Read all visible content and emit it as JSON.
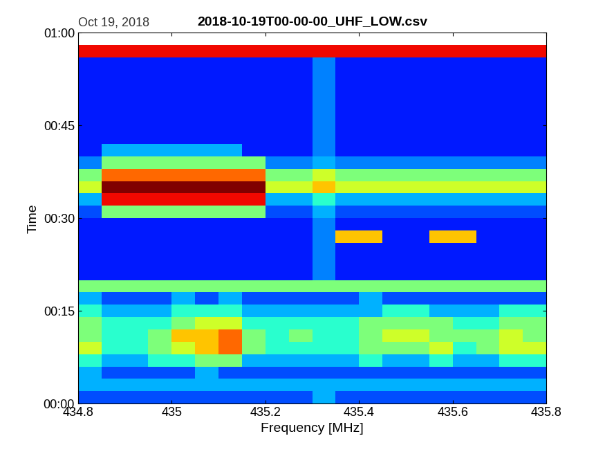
{
  "chart_data": {
    "type": "heatmap",
    "title": "2018-10-19T00-00-00_UHF_LOW.csv",
    "subtitle": "Oct 19, 2018",
    "x_label": "Frequency [MHz]",
    "y_label": "Time",
    "color": "jet",
    "xlim": [
      434.8,
      435.8
    ],
    "ylim": [
      0,
      60
    ],
    "xticks": [
      434.8,
      435,
      435.2,
      435.4,
      435.6,
      435.8
    ],
    "yticks": [
      {
        "value": 0,
        "label": "00:00"
      },
      {
        "value": 15,
        "label": "00:15"
      },
      {
        "value": 30,
        "label": "00:30"
      },
      {
        "value": 45,
        "label": "00:45"
      },
      {
        "value": 60,
        "label": "01:00"
      }
    ],
    "color_range": [
      0,
      10
    ],
    "x_edges": [
      434.8,
      434.85,
      434.9,
      434.95,
      435.0,
      435.05,
      435.1,
      435.15,
      435.2,
      435.25,
      435.3,
      435.35,
      435.4,
      435.45,
      435.5,
      435.55,
      435.6,
      435.65,
      435.7,
      435.75,
      435.8
    ],
    "y_edges": [
      0,
      2,
      4,
      6,
      8,
      10,
      12,
      14,
      16,
      18,
      20,
      22,
      24,
      26,
      28,
      30,
      32,
      34,
      36,
      38,
      40,
      42,
      44,
      46,
      48,
      50,
      52,
      54,
      56,
      58
    ],
    "cells": [
      [
        2,
        2,
        2,
        2,
        2,
        2,
        2,
        2,
        2,
        2,
        3,
        2,
        2,
        2,
        2,
        2,
        2,
        2,
        2,
        2
      ],
      [
        3,
        3,
        3,
        3,
        3,
        3,
        3,
        3,
        3,
        3,
        3,
        3,
        3,
        3,
        3,
        3,
        3,
        3,
        3,
        3
      ],
      [
        3,
        2,
        2,
        2,
        2,
        3,
        2,
        2,
        2,
        2,
        2,
        2,
        2,
        2,
        2,
        2,
        2,
        2,
        2,
        2
      ],
      [
        4,
        3,
        3,
        4,
        4,
        5,
        5,
        3,
        3,
        3,
        3,
        3,
        4,
        3,
        3,
        4,
        3,
        3,
        4,
        4
      ],
      [
        6,
        4,
        4,
        5,
        6,
        7,
        8,
        5,
        4,
        4,
        4,
        4,
        5,
        5,
        5,
        6,
        4,
        5,
        6,
        6
      ],
      [
        5,
        4,
        4,
        5,
        7,
        7,
        8,
        5,
        4,
        5,
        4,
        4,
        5,
        6,
        6,
        5,
        5,
        5,
        6,
        5
      ],
      [
        5,
        4,
        4,
        4,
        5,
        6,
        6,
        4,
        4,
        4,
        4,
        4,
        5,
        5,
        5,
        5,
        4,
        4,
        5,
        5
      ],
      [
        4,
        3,
        3,
        3,
        4,
        4,
        4,
        3,
        3,
        3,
        3,
        3,
        3,
        4,
        4,
        3,
        3,
        3,
        4,
        4
      ],
      [
        3,
        2,
        2,
        2,
        3,
        2,
        3,
        2,
        2,
        2,
        2,
        2,
        3,
        2,
        2,
        2,
        2,
        2,
        2,
        2
      ],
      [
        5,
        5,
        5,
        5,
        5,
        5,
        5,
        5,
        5,
        5,
        5,
        5,
        5,
        5,
        5,
        5,
        5,
        5,
        5,
        5
      ],
      [
        1.5,
        1.5,
        1.5,
        1.5,
        1.5,
        1.5,
        1.5,
        1.5,
        1.5,
        1.5,
        2.5,
        1.5,
        1.5,
        1.5,
        1.5,
        1.5,
        1.5,
        1.5,
        1.5,
        1.5
      ],
      [
        1.5,
        1.5,
        1.5,
        1.5,
        1.5,
        1.5,
        1.5,
        1.5,
        1.5,
        1.5,
        2.5,
        1.5,
        1.5,
        1.5,
        1.5,
        1.5,
        1.5,
        1.5,
        1.5,
        1.5
      ],
      [
        1.5,
        1.5,
        1.5,
        1.5,
        1.5,
        1.5,
        1.5,
        1.5,
        1.5,
        1.5,
        2.5,
        1.5,
        1.5,
        1.5,
        1.5,
        1.5,
        1.5,
        1.5,
        1.5,
        1.5
      ],
      [
        1.5,
        1.5,
        1.5,
        1.5,
        1.5,
        1.5,
        1.5,
        1.5,
        1.5,
        1.5,
        2.5,
        7,
        7,
        1.5,
        1.5,
        7,
        7,
        1.5,
        1.5,
        1.5
      ],
      [
        1.5,
        1.5,
        1.5,
        1.5,
        1.5,
        1.5,
        1.5,
        1.5,
        1.5,
        1.5,
        2.5,
        1.5,
        1.5,
        1.5,
        1.5,
        1.5,
        1.5,
        1.5,
        1.5,
        1.5
      ],
      [
        2,
        5,
        5,
        5,
        5,
        5,
        5,
        5,
        2,
        2,
        3,
        2,
        2,
        2,
        2,
        2,
        2,
        2,
        2,
        2
      ],
      [
        3,
        9,
        9,
        9,
        9,
        9,
        9,
        9,
        3,
        3,
        4,
        3,
        3,
        3,
        3,
        3,
        3,
        3,
        3,
        3
      ],
      [
        6,
        10,
        10,
        10,
        10,
        10,
        10,
        10,
        6,
        6,
        7,
        6,
        6,
        6,
        6,
        6,
        6,
        6,
        6,
        6
      ],
      [
        5,
        8,
        8,
        8,
        8,
        8,
        8,
        8,
        5,
        5,
        6,
        5,
        5,
        5,
        5,
        5,
        5,
        5,
        5,
        5
      ],
      [
        2.5,
        5,
        5,
        5,
        5,
        5,
        5,
        5,
        2.5,
        2.5,
        3,
        2.5,
        2.5,
        2.5,
        2.5,
        2.5,
        2.5,
        2.5,
        2.5,
        2.5
      ],
      [
        1.5,
        3,
        3,
        3,
        3,
        3,
        3,
        1.5,
        1.5,
        1.5,
        2.5,
        1.5,
        1.5,
        1.5,
        1.5,
        1.5,
        1.5,
        1.5,
        1.5,
        1.5
      ],
      [
        1.5,
        1.5,
        1.5,
        1.5,
        1.5,
        1.5,
        1.5,
        1.5,
        1.5,
        1.5,
        2.5,
        1.5,
        1.5,
        1.5,
        1.5,
        1.5,
        1.5,
        1.5,
        1.5,
        1.5
      ],
      [
        1.5,
        1.5,
        1.5,
        1.5,
        1.5,
        1.5,
        1.5,
        1.5,
        1.5,
        1.5,
        2.5,
        1.5,
        1.5,
        1.5,
        1.5,
        1.5,
        1.5,
        1.5,
        1.5,
        1.5
      ],
      [
        1.5,
        1.5,
        1.5,
        1.5,
        1.5,
        1.5,
        1.5,
        1.5,
        1.5,
        1.5,
        2.5,
        1.5,
        1.5,
        1.5,
        1.5,
        1.5,
        1.5,
        1.5,
        1.5,
        1.5
      ],
      [
        1.5,
        1.5,
        1.5,
        1.5,
        1.5,
        1.5,
        1.5,
        1.5,
        1.5,
        1.5,
        2.5,
        1.5,
        1.5,
        1.5,
        1.5,
        1.5,
        1.5,
        1.5,
        1.5,
        1.5
      ],
      [
        1.5,
        1.5,
        1.5,
        1.5,
        1.5,
        1.5,
        1.5,
        1.5,
        1.5,
        1.5,
        2.5,
        1.5,
        1.5,
        1.5,
        1.5,
        1.5,
        1.5,
        1.5,
        1.5,
        1.5
      ],
      [
        1.5,
        1.5,
        1.5,
        1.5,
        1.5,
        1.5,
        1.5,
        1.5,
        1.5,
        1.5,
        2.5,
        1.5,
        1.5,
        1.5,
        1.5,
        1.5,
        1.5,
        1.5,
        1.5,
        1.5
      ],
      [
        1.5,
        1.5,
        1.5,
        1.5,
        1.5,
        1.5,
        1.5,
        1.5,
        1.5,
        1.5,
        2.5,
        1.5,
        1.5,
        1.5,
        1.5,
        1.5,
        1.5,
        1.5,
        1.5,
        1.5
      ],
      [
        9,
        9,
        9,
        9,
        9,
        9,
        9,
        9,
        9,
        9,
        9,
        9,
        9,
        9,
        9,
        9,
        9,
        9,
        9,
        9
      ]
    ]
  }
}
